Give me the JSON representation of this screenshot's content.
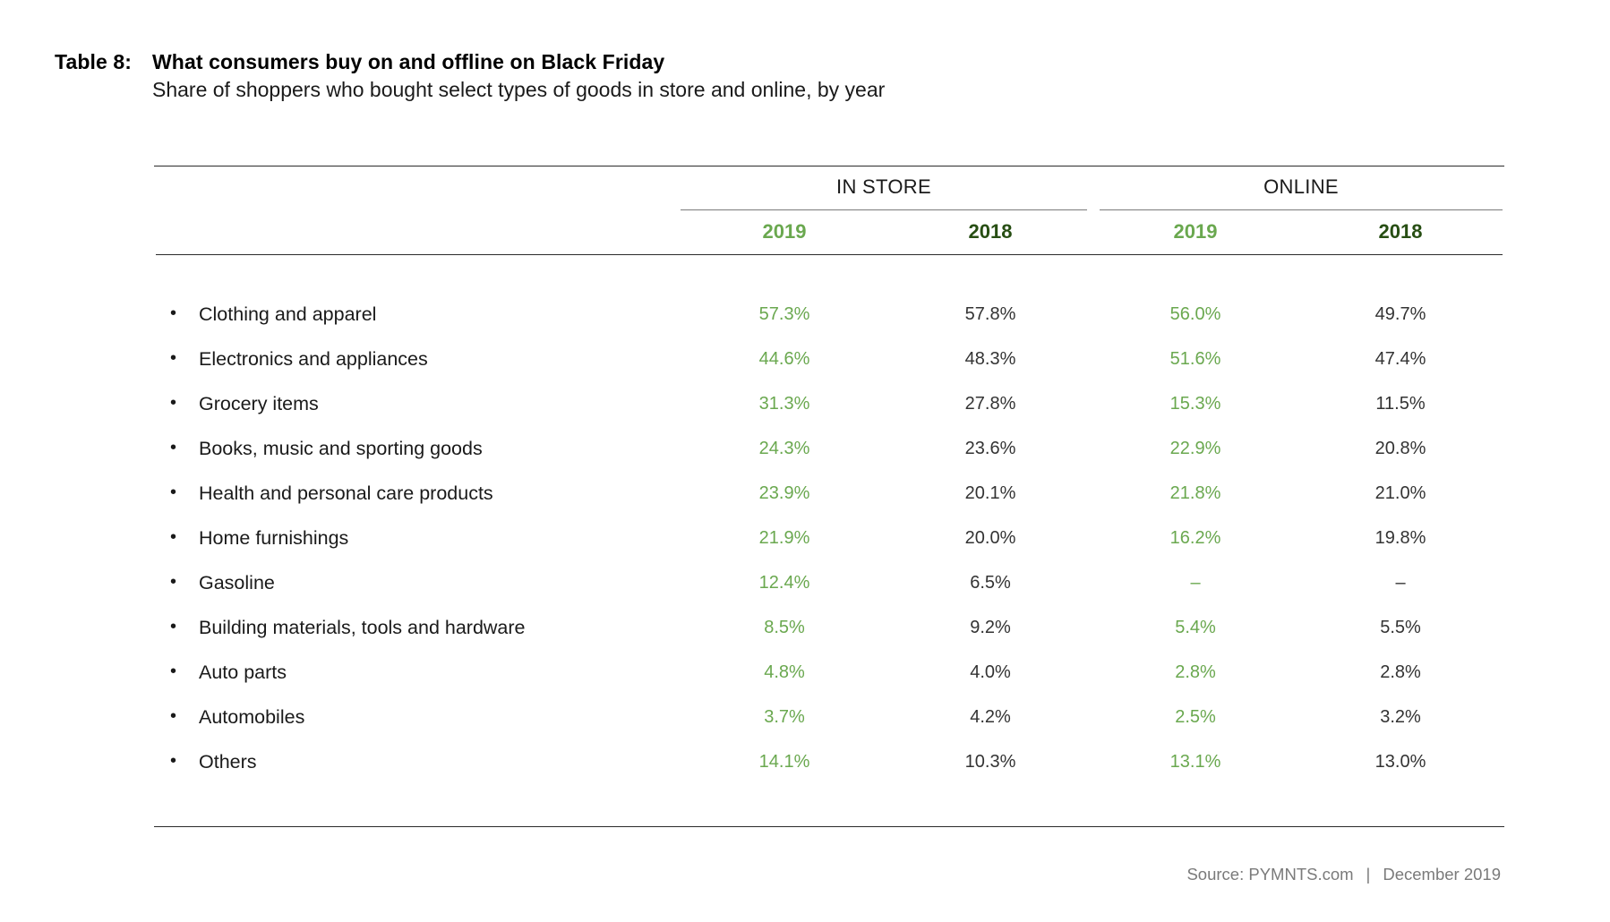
{
  "table": {
    "label": "Table 8:",
    "title": "What consumers buy on and offline on Black Friday",
    "subtitle": "Share of shoppers who bought select types of goods in store and online, by year",
    "groups": [
      "IN STORE",
      "ONLINE"
    ],
    "years": [
      "2019",
      "2018",
      "2019",
      "2018"
    ],
    "rows": [
      {
        "category": "Clothing and apparel",
        "values": [
          "57.3%",
          "57.8%",
          "56.0%",
          "49.7%"
        ]
      },
      {
        "category": "Electronics and appliances",
        "values": [
          "44.6%",
          "48.3%",
          "51.6%",
          "47.4%"
        ]
      },
      {
        "category": "Grocery items",
        "values": [
          "31.3%",
          "27.8%",
          "15.3%",
          "11.5%"
        ]
      },
      {
        "category": "Books, music and sporting goods",
        "values": [
          "24.3%",
          "23.6%",
          "22.9%",
          "20.8%"
        ]
      },
      {
        "category": "Health and personal care products",
        "values": [
          "23.9%",
          "20.1%",
          "21.8%",
          "21.0%"
        ]
      },
      {
        "category": "Home furnishings",
        "values": [
          "21.9%",
          "20.0%",
          "16.2%",
          "19.8%"
        ]
      },
      {
        "category": "Gasoline",
        "values": [
          "12.4%",
          "6.5%",
          "–",
          "–"
        ]
      },
      {
        "category": "Building materials, tools and hardware",
        "values": [
          "8.5%",
          "9.2%",
          "5.4%",
          "5.5%"
        ]
      },
      {
        "category": "Auto parts",
        "values": [
          "4.8%",
          "4.0%",
          "2.8%",
          "2.8%"
        ]
      },
      {
        "category": "Automobiles",
        "values": [
          "3.7%",
          "4.2%",
          "2.5%",
          "3.2%"
        ]
      },
      {
        "category": "Others",
        "values": [
          "14.1%",
          "10.3%",
          "13.1%",
          "13.0%"
        ]
      }
    ],
    "bullet": "•"
  },
  "source": {
    "text": "Source: PYMNTS.com",
    "separator": "|",
    "date": "December 2019"
  },
  "colors": {
    "year_2019": "#6aa84f",
    "year_2018": "#274e13"
  }
}
